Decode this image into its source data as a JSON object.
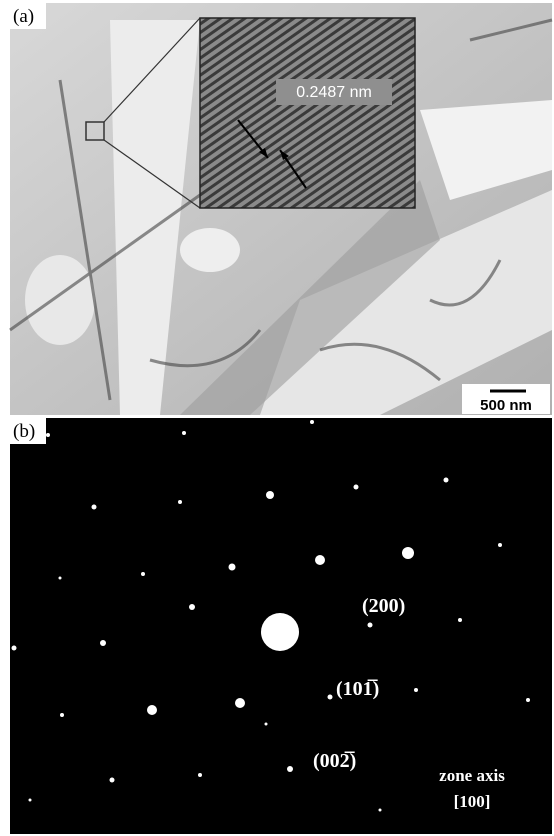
{
  "panel_a": {
    "label": "(a)",
    "inset_label": "0.2487 nm",
    "scale_bar": "500 nm"
  },
  "panel_b": {
    "label": "(b)",
    "reflections": [
      "(200)",
      "(101̅)",
      "(002̅)"
    ],
    "zone_axis_title": "zone axis",
    "zone_axis": "[100]"
  }
}
